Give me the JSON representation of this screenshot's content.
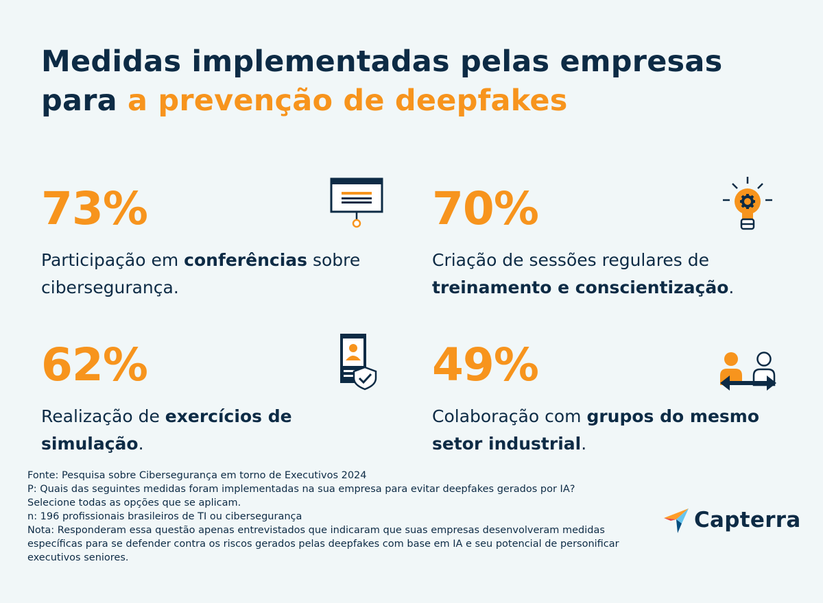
{
  "title": {
    "part1": "Medidas implementadas pelas empresas",
    "part2_plain": "para ",
    "part2_accent": "a prevenção de deepfakes"
  },
  "stats": [
    {
      "value": "73%",
      "pre": "Participação em ",
      "bold": "conferências",
      "post": " sobre cibersegurança.",
      "icon": "presentation-board-icon"
    },
    {
      "value": "70%",
      "pre": "Criação de sessões regulares de ",
      "bold": "treinamento e conscientização",
      "post": ".",
      "icon": "lightbulb-gear-icon"
    },
    {
      "value": "62%",
      "pre": "Realização de ",
      "bold": "exercícios de simulação",
      "post": ".",
      "icon": "id-badge-shield-icon"
    },
    {
      "value": "49%",
      "pre": "Colaboração com ",
      "bold": "grupos do mesmo setor industrial",
      "post": ".",
      "icon": "people-exchange-icon"
    }
  ],
  "footer": {
    "source": "Fonte: Pesquisa sobre Cibersegurança em torno de Executivos 2024",
    "question": "P: Quais das seguintes medidas foram implementadas na sua empresa para evitar deepfakes gerados por IA?",
    "instruction": "Selecione todas as opções que se aplicam.",
    "sample": "n: 196 profissionais brasileiros de TI ou cibersegurança",
    "note": "Nota: Responderam essa questão apenas entrevistados que indicaram que suas empresas desenvolveram medidas específicas para se defender contra os riscos gerados pelas deepfakes com base em IA e seu potencial de personificar executivos seniores."
  },
  "brand": {
    "name": "Capterra"
  },
  "colors": {
    "background": "#f1f7f8",
    "navy": "#0d2b45",
    "orange": "#f7941d"
  }
}
